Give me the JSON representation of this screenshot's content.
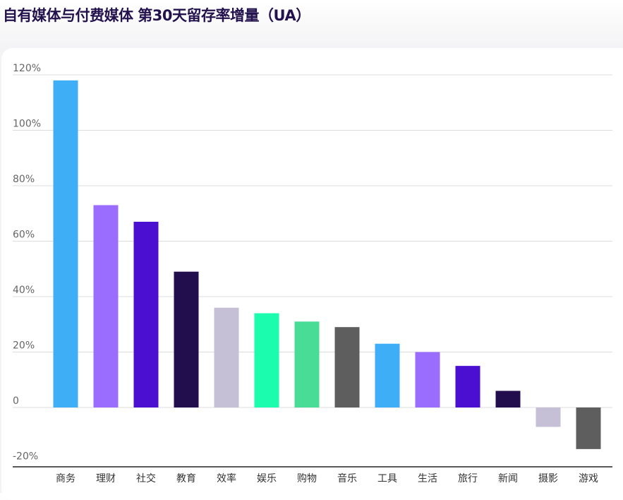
{
  "title": "自有媒体与付费媒体 第30天留存率增量（UA）",
  "chart_data": {
    "type": "bar",
    "title": "自有媒体与付费媒体 第30天留存率增量（UA）",
    "xlabel": "",
    "ylabel": "",
    "categories": [
      "商务",
      "理财",
      "社交",
      "教育",
      "效率",
      "娱乐",
      "购物",
      "音乐",
      "工具",
      "生活",
      "旅行",
      "新闻",
      "摄影",
      "游戏"
    ],
    "values": [
      118,
      73,
      67,
      49,
      36,
      34,
      31,
      29,
      23,
      20,
      15,
      6,
      -7,
      -15
    ],
    "unit": "%",
    "ylim": [
      -20,
      120
    ],
    "yticks": [
      -20,
      0,
      20,
      40,
      60,
      80,
      100,
      120
    ],
    "ytick_labels": [
      "-20%",
      "0",
      "20%",
      "40%",
      "60%",
      "80%",
      "100%",
      "120%"
    ],
    "grid": true,
    "legend": "none",
    "colors": [
      "#3eaff6",
      "#9b6dff",
      "#4b0fd1",
      "#220e4c",
      "#c5c0d6",
      "#1cfcaf",
      "#48dc96",
      "#5e5e5e",
      "#3eaff6",
      "#9b6dff",
      "#4b0fd1",
      "#220e4c",
      "#c5c0d6",
      "#5e5e5e"
    ]
  }
}
